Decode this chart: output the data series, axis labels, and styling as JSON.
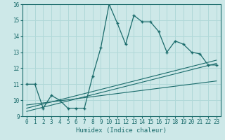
{
  "xlabel": "Humidex (Indice chaleur)",
  "xlim": [
    -0.5,
    23.5
  ],
  "ylim": [
    9,
    16
  ],
  "xticks": [
    0,
    1,
    2,
    3,
    4,
    5,
    6,
    7,
    8,
    9,
    10,
    11,
    12,
    13,
    14,
    15,
    16,
    17,
    18,
    19,
    20,
    21,
    22,
    23
  ],
  "yticks": [
    9,
    10,
    11,
    12,
    13,
    14,
    15,
    16
  ],
  "bg_color": "#cde8e8",
  "grid_color": "#b0d8d8",
  "line_color": "#1a6b6b",
  "main_series_x": [
    0,
    1,
    2,
    3,
    4,
    5,
    6,
    7,
    8,
    9,
    10,
    11,
    12,
    13,
    14,
    15,
    16,
    17,
    18,
    19,
    20,
    21,
    22,
    23
  ],
  "main_series_y": [
    11.0,
    11.0,
    9.5,
    10.3,
    10.0,
    9.5,
    9.5,
    9.5,
    11.5,
    13.3,
    16.0,
    14.8,
    13.5,
    15.3,
    14.9,
    14.9,
    14.3,
    13.0,
    13.7,
    13.5,
    13.0,
    12.9,
    12.2,
    12.2
  ],
  "trend1_x": [
    0,
    23
  ],
  "trend1_y": [
    9.3,
    12.3
  ],
  "trend2_x": [
    0,
    23
  ],
  "trend2_y": [
    9.5,
    12.5
  ],
  "trend3_x": [
    0,
    23
  ],
  "trend3_y": [
    9.7,
    11.2
  ],
  "font_family": "monospace"
}
